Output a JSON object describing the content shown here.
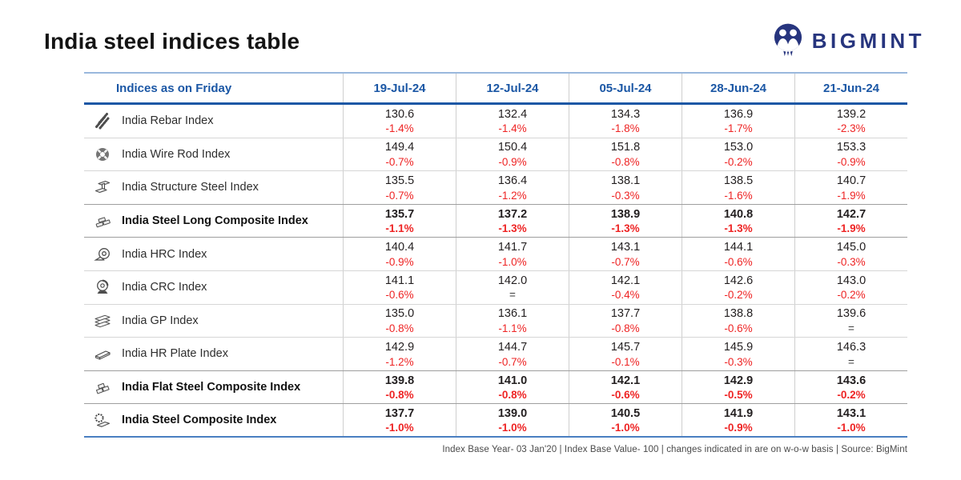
{
  "page": {
    "title": "India steel indices table",
    "footnote": "Index Base Year- 03 Jan'20 | Index Base Value- 100 | changes indicated in are on w-o-w basis | Source: BigMint"
  },
  "brand": {
    "name": "BIGMINT",
    "color": "#27357e"
  },
  "colors": {
    "header_blue": "#1b57a5",
    "top_rule_light_blue": "#9ab8dd",
    "bottom_rule_blue": "#4a7fc1",
    "negative_red": "#ee2424",
    "value_black": "#231f20",
    "row_divider_gray": "#d6d6d6"
  },
  "chart_data": {
    "type": "table",
    "title": "India steel indices table",
    "columns": [
      "Indices as on Friday",
      "19-Jul-24",
      "12-Jul-24",
      "05-Jul-24",
      "28-Jun-24",
      "21-Jun-24"
    ],
    "rows": [
      {
        "label": "India Rebar Index",
        "icon": "rebar-icon",
        "bold": false,
        "cells": [
          [
            "130.6",
            "-1.4%"
          ],
          [
            "132.4",
            "-1.4%"
          ],
          [
            "134.3",
            "-1.8%"
          ],
          [
            "136.9",
            "-1.7%"
          ],
          [
            "139.2",
            "-2.3%"
          ]
        ]
      },
      {
        "label": "India Wire Rod Index",
        "icon": "wire-rod-coil-icon",
        "bold": false,
        "cells": [
          [
            "149.4",
            "-0.7%"
          ],
          [
            "150.4",
            "-0.9%"
          ],
          [
            "151.8",
            "-0.8%"
          ],
          [
            "153.0",
            "-0.2%"
          ],
          [
            "153.3",
            "-0.9%"
          ]
        ]
      },
      {
        "label": "India Structure Steel Index",
        "icon": "structure-steel-beam-icon",
        "bold": false,
        "cells": [
          [
            "135.5",
            "-0.7%"
          ],
          [
            "136.4",
            "-1.2%"
          ],
          [
            "138.1",
            "-0.3%"
          ],
          [
            "138.5",
            "-1.6%"
          ],
          [
            "140.7",
            "-1.9%"
          ]
        ]
      },
      {
        "label": "India Steel Long Composite Index",
        "icon": "long-steel-stack-icon",
        "bold": true,
        "cells": [
          [
            "135.7",
            "-1.1%"
          ],
          [
            "137.2",
            "-1.3%"
          ],
          [
            "138.9",
            "-1.3%"
          ],
          [
            "140.8",
            "-1.3%"
          ],
          [
            "142.7",
            "-1.9%"
          ]
        ]
      },
      {
        "label": "India HRC Index",
        "icon": "hrc-coil-icon",
        "bold": false,
        "cells": [
          [
            "140.4",
            "-0.9%"
          ],
          [
            "141.7",
            "-1.0%"
          ],
          [
            "143.1",
            "-0.7%"
          ],
          [
            "144.1",
            "-0.6%"
          ],
          [
            "145.0",
            "-0.3%"
          ]
        ]
      },
      {
        "label": "India CRC Index",
        "icon": "crc-coil-stand-icon",
        "bold": false,
        "cells": [
          [
            "141.1",
            "-0.6%"
          ],
          [
            "142.0",
            "="
          ],
          [
            "142.1",
            "-0.4%"
          ],
          [
            "142.6",
            "-0.2%"
          ],
          [
            "143.0",
            "-0.2%"
          ]
        ]
      },
      {
        "label": "India GP Index",
        "icon": "gp-sheets-icon",
        "bold": false,
        "cells": [
          [
            "135.0",
            "-0.8%"
          ],
          [
            "136.1",
            "-1.1%"
          ],
          [
            "137.7",
            "-0.8%"
          ],
          [
            "138.8",
            "-0.6%"
          ],
          [
            "139.6",
            "="
          ]
        ]
      },
      {
        "label": "India HR Plate Index",
        "icon": "hr-plate-icon",
        "bold": false,
        "cells": [
          [
            "142.9",
            "-1.2%"
          ],
          [
            "144.7",
            "-0.7%"
          ],
          [
            "145.7",
            "-0.1%"
          ],
          [
            "145.9",
            "-0.3%"
          ],
          [
            "146.3",
            "="
          ]
        ]
      },
      {
        "label": "India Flat Steel Composite Index",
        "icon": "flat-steel-stack-icon",
        "bold": true,
        "cells": [
          [
            "139.8",
            "-0.8%"
          ],
          [
            "141.0",
            "-0.8%"
          ],
          [
            "142.1",
            "-0.6%"
          ],
          [
            "142.9",
            "-0.5%"
          ],
          [
            "143.6",
            "-0.2%"
          ]
        ]
      },
      {
        "label": "India Steel Composite Index",
        "icon": "steel-composite-icon",
        "bold": true,
        "cells": [
          [
            "137.7",
            "-1.0%"
          ],
          [
            "139.0",
            "-1.0%"
          ],
          [
            "140.5",
            "-1.0%"
          ],
          [
            "141.9",
            "-0.9%"
          ],
          [
            "143.1",
            "-1.0%"
          ]
        ]
      }
    ]
  }
}
